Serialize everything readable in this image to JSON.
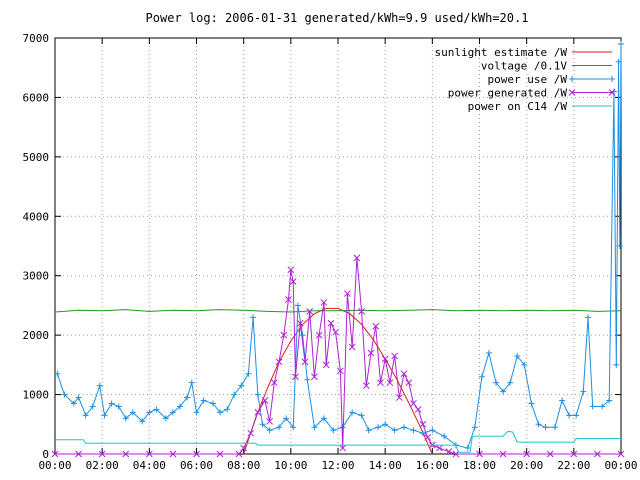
{
  "chart_data": {
    "type": "line",
    "title": "Power log: 2006-01-31 generated/kWh=9.9 used/kWh=20.1",
    "xlabel": "",
    "ylabel": "",
    "xlim": [
      0,
      24
    ],
    "ylim": [
      0,
      7000
    ],
    "grid": true,
    "legend_position": "top-right",
    "x_ticks": [
      0,
      2,
      4,
      6,
      8,
      10,
      12,
      14,
      16,
      18,
      20,
      22,
      24
    ],
    "x_tick_labels": [
      "00:00",
      "02:00",
      "04:00",
      "06:00",
      "08:00",
      "10:00",
      "12:00",
      "14:00",
      "16:00",
      "18:00",
      "20:00",
      "22:00",
      "00:00"
    ],
    "y_ticks": [
      0,
      1000,
      2000,
      3000,
      4000,
      5000,
      6000,
      7000
    ],
    "y_tick_labels": [
      "0",
      "1000",
      "2000",
      "3000",
      "4000",
      "5000",
      "6000",
      "7000"
    ],
    "series": [
      {
        "name": "sunlight estimate /W",
        "color": "#e31a1c",
        "marker": "none",
        "points": [
          [
            8.0,
            0
          ],
          [
            8.5,
            600
          ],
          [
            9.0,
            1100
          ],
          [
            9.5,
            1550
          ],
          [
            10.0,
            1900
          ],
          [
            10.5,
            2180
          ],
          [
            11.0,
            2360
          ],
          [
            11.5,
            2450
          ],
          [
            12.0,
            2450
          ],
          [
            12.5,
            2360
          ],
          [
            13.0,
            2180
          ],
          [
            13.5,
            1920
          ],
          [
            14.0,
            1600
          ],
          [
            14.5,
            1250
          ],
          [
            15.0,
            860
          ],
          [
            15.5,
            450
          ],
          [
            16.0,
            0
          ]
        ]
      },
      {
        "name": "voltage /0.1V",
        "color": "#1a9e1a",
        "marker": "none",
        "points": [
          [
            0,
            2390
          ],
          [
            1,
            2420
          ],
          [
            2,
            2410
          ],
          [
            3,
            2430
          ],
          [
            4,
            2400
          ],
          [
            5,
            2420
          ],
          [
            6,
            2410
          ],
          [
            7,
            2430
          ],
          [
            8,
            2420
          ],
          [
            9,
            2400
          ],
          [
            10,
            2390
          ],
          [
            11,
            2410
          ],
          [
            12,
            2410
          ],
          [
            13,
            2420
          ],
          [
            14,
            2410
          ],
          [
            15,
            2420
          ],
          [
            16,
            2430
          ],
          [
            17,
            2410
          ],
          [
            18,
            2420
          ],
          [
            19,
            2410
          ],
          [
            20,
            2420
          ],
          [
            21,
            2410
          ],
          [
            22,
            2420
          ],
          [
            23,
            2400
          ],
          [
            24,
            2410
          ]
        ]
      },
      {
        "name": "power use /W",
        "color": "#1f8fe0",
        "marker": "plus",
        "points": [
          [
            0.1,
            1350
          ],
          [
            0.4,
            1000
          ],
          [
            0.8,
            850
          ],
          [
            1.0,
            950
          ],
          [
            1.3,
            650
          ],
          [
            1.6,
            800
          ],
          [
            1.9,
            1150
          ],
          [
            2.1,
            650
          ],
          [
            2.4,
            850
          ],
          [
            2.7,
            800
          ],
          [
            3.0,
            600
          ],
          [
            3.3,
            700
          ],
          [
            3.7,
            550
          ],
          [
            4.0,
            700
          ],
          [
            4.3,
            750
          ],
          [
            4.7,
            600
          ],
          [
            5.0,
            700
          ],
          [
            5.3,
            800
          ],
          [
            5.6,
            950
          ],
          [
            5.8,
            1200
          ],
          [
            6.0,
            700
          ],
          [
            6.3,
            900
          ],
          [
            6.7,
            850
          ],
          [
            7.0,
            700
          ],
          [
            7.3,
            750
          ],
          [
            7.6,
            1000
          ],
          [
            7.9,
            1150
          ],
          [
            8.2,
            1350
          ],
          [
            8.4,
            2300
          ],
          [
            8.6,
            1000
          ],
          [
            8.8,
            500
          ],
          [
            9.1,
            400
          ],
          [
            9.5,
            450
          ],
          [
            9.8,
            600
          ],
          [
            10.1,
            450
          ],
          [
            10.3,
            2500
          ],
          [
            10.5,
            2000
          ],
          [
            10.7,
            1250
          ],
          [
            11.0,
            450
          ],
          [
            11.4,
            600
          ],
          [
            11.8,
            400
          ],
          [
            12.2,
            450
          ],
          [
            12.6,
            700
          ],
          [
            13.0,
            650
          ],
          [
            13.3,
            400
          ],
          [
            13.7,
            450
          ],
          [
            14.0,
            500
          ],
          [
            14.4,
            400
          ],
          [
            14.8,
            450
          ],
          [
            15.2,
            400
          ],
          [
            15.6,
            350
          ],
          [
            16.0,
            400
          ],
          [
            16.5,
            300
          ],
          [
            17.0,
            150
          ],
          [
            17.5,
            100
          ],
          [
            17.8,
            450
          ],
          [
            18.1,
            1300
          ],
          [
            18.4,
            1700
          ],
          [
            18.7,
            1200
          ],
          [
            19.0,
            1050
          ],
          [
            19.3,
            1200
          ],
          [
            19.6,
            1650
          ],
          [
            19.9,
            1500
          ],
          [
            20.2,
            850
          ],
          [
            20.5,
            500
          ],
          [
            20.8,
            450
          ],
          [
            21.2,
            450
          ],
          [
            21.5,
            900
          ],
          [
            21.8,
            650
          ],
          [
            22.1,
            650
          ],
          [
            22.4,
            1050
          ],
          [
            22.6,
            2300
          ],
          [
            22.8,
            800
          ],
          [
            23.2,
            800
          ],
          [
            23.5,
            900
          ],
          [
            23.7,
            6100
          ],
          [
            23.8,
            1500
          ],
          [
            23.9,
            6600
          ],
          [
            23.95,
            3500
          ],
          [
            24.0,
            6900
          ]
        ]
      },
      {
        "name": "power generated /W",
        "color": "#b020d8",
        "marker": "cross",
        "points": [
          [
            0.0,
            0
          ],
          [
            1,
            0
          ],
          [
            2,
            0
          ],
          [
            3,
            0
          ],
          [
            4,
            0
          ],
          [
            5,
            0
          ],
          [
            6,
            0
          ],
          [
            7,
            0
          ],
          [
            7.8,
            0
          ],
          [
            8.0,
            100
          ],
          [
            8.3,
            350
          ],
          [
            8.6,
            700
          ],
          [
            8.9,
            900
          ],
          [
            9.1,
            550
          ],
          [
            9.3,
            1200
          ],
          [
            9.5,
            1550
          ],
          [
            9.7,
            2000
          ],
          [
            9.9,
            2600
          ],
          [
            10.0,
            3100
          ],
          [
            10.1,
            2900
          ],
          [
            10.2,
            1300
          ],
          [
            10.4,
            2200
          ],
          [
            10.6,
            1550
          ],
          [
            10.8,
            2400
          ],
          [
            11.0,
            1300
          ],
          [
            11.2,
            2000
          ],
          [
            11.4,
            2550
          ],
          [
            11.5,
            1500
          ],
          [
            11.7,
            2200
          ],
          [
            11.9,
            2050
          ],
          [
            12.1,
            1400
          ],
          [
            12.2,
            100
          ],
          [
            12.4,
            2700
          ],
          [
            12.6,
            1800
          ],
          [
            12.8,
            3300
          ],
          [
            13.0,
            2400
          ],
          [
            13.2,
            1150
          ],
          [
            13.4,
            1700
          ],
          [
            13.6,
            2150
          ],
          [
            13.8,
            1200
          ],
          [
            14.0,
            1600
          ],
          [
            14.2,
            1200
          ],
          [
            14.4,
            1650
          ],
          [
            14.6,
            950
          ],
          [
            14.8,
            1350
          ],
          [
            15.0,
            1200
          ],
          [
            15.2,
            850
          ],
          [
            15.4,
            750
          ],
          [
            15.6,
            500
          ],
          [
            15.8,
            280
          ],
          [
            16.0,
            150
          ],
          [
            16.3,
            100
          ],
          [
            16.7,
            40
          ],
          [
            17.0,
            0
          ],
          [
            18,
            0
          ],
          [
            19,
            0
          ],
          [
            20,
            0
          ],
          [
            21,
            0
          ],
          [
            22,
            0
          ],
          [
            23,
            0
          ],
          [
            24,
            0
          ]
        ]
      },
      {
        "name": "power on C14 /W",
        "color": "#18c8c8",
        "marker": "none",
        "points": [
          [
            0,
            240
          ],
          [
            1.2,
            240
          ],
          [
            1.3,
            180
          ],
          [
            2,
            180
          ],
          [
            3,
            180
          ],
          [
            4,
            180
          ],
          [
            5,
            180
          ],
          [
            6,
            180
          ],
          [
            7,
            180
          ],
          [
            8,
            180
          ],
          [
            8.5,
            180
          ],
          [
            8.6,
            150
          ],
          [
            10,
            150
          ],
          [
            12,
            150
          ],
          [
            14,
            150
          ],
          [
            16,
            150
          ],
          [
            17.0,
            150
          ],
          [
            17.1,
            30
          ],
          [
            17.6,
            30
          ],
          [
            17.7,
            300
          ],
          [
            19.0,
            300
          ],
          [
            19.2,
            380
          ],
          [
            19.4,
            370
          ],
          [
            19.6,
            200
          ],
          [
            20.2,
            200
          ],
          [
            21,
            200
          ],
          [
            22.0,
            200
          ],
          [
            22.1,
            260
          ],
          [
            23.9,
            260
          ],
          [
            24,
            260
          ]
        ]
      }
    ]
  }
}
